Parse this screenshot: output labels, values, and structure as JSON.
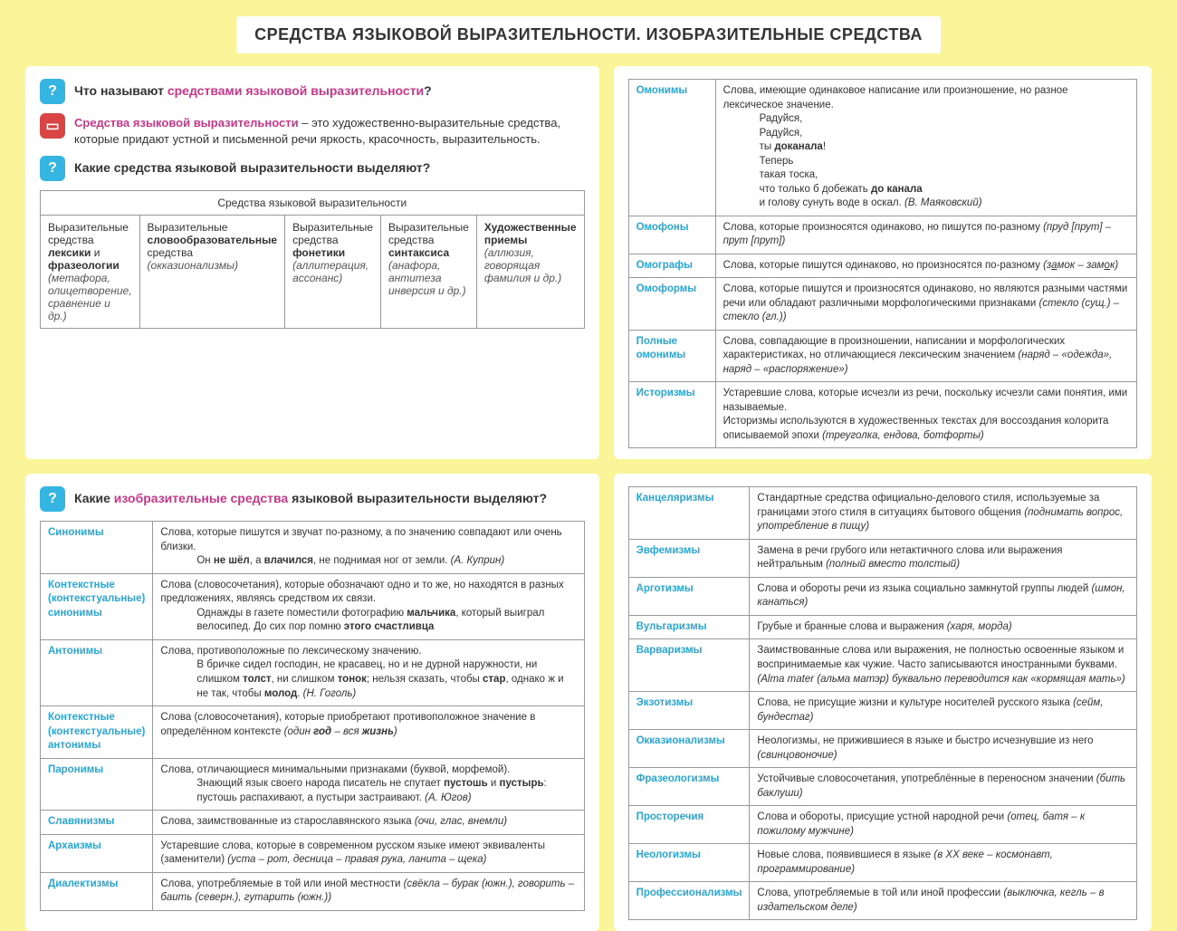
{
  "title": "СРЕДСТВА ЯЗЫКОВОЙ ВЫРАЗИТЕЛЬНОСТИ. ИЗОБРАЗИТЕЛЬНЫЕ СРЕДСТВА",
  "colors": {
    "page_bg": "#fbf59a",
    "panel_bg": "#ffffff",
    "term": "#2aa6d4",
    "highlight": "#c7378a",
    "q_icon": "#34b5e2",
    "a_icon": "#d94545",
    "border": "#999999"
  },
  "q1": {
    "pre": "Что называют ",
    "hl": "средствами языковой выразительности",
    "post": "?"
  },
  "a1": {
    "hl": "Средства языковой выразительности",
    "rest": " – это художественно-выразительные средства, которые придают устной и письменной речи яркость, красочность, выразительность."
  },
  "q2": "Какие средства языковой выразительности выделяют?",
  "t5_header": "Средства языковой выразительности",
  "t5": [
    {
      "main": "Выразительные средства <b>лексики</b> и <b>фразеологии</b>",
      "ex": "(метафора, олицетворение, сравнение и др.)"
    },
    {
      "main": "Выразительные <b>словообразовательные</b> средства",
      "ex": "(окказионализмы)"
    },
    {
      "main": "Выразительные средства <b>фонетики</b>",
      "ex": "(аллитерация, ассонанс)"
    },
    {
      "main": "Выразительные средства <b>синтаксиса</b>",
      "ex": "(анафора, антитеза инверсия и др.)"
    },
    {
      "main": "<b>Художественные приемы</b>",
      "ex": "(аллюзия, говорящая фамилия и др.)"
    }
  ],
  "tableA": [
    {
      "term": "Омонимы",
      "def": "Слова, имеющие одинаковое написание или произношение, но разное лексическое значение.<br><span class='indent'>Радуйся,<br>Радуйся,<br>ты <b>доканала</b>!<br>Теперь<br>такая тоска,<br>что только б добежать <b>до канала</b><br>и голову сунуть воде в оскал. <span class='iex'>(В. Маяковский)</span></span>"
    },
    {
      "term": "Омофоны",
      "def": "Слова, которые произносятся одинаково, но пишутся по-разному <span class='iex'>(пруд [прут] – прут [прут])</span>"
    },
    {
      "term": "Омографы",
      "def": "Слова, которые пишутся одинаково, но произносятся по-разному <span class='iex'>(з<u>а</u>мок – зам<u>о</u>к)</span>"
    },
    {
      "term": "Омоформы",
      "def": "Слова, которые пишутся и произносятся одинаково, но являются разными частями речи или обладают различными морфологическими признаками <span class='iex'>(стекло (сущ.) – стекло (гл.))</span>"
    },
    {
      "term": "Полные омонимы",
      "def": "Слова, совпадающие в произношении, написании и морфологических характеристиках, но отличающиеся лексическим значением <span class='iex'>(наряд – «одежда», наряд – «распоряжение»)</span>"
    },
    {
      "term": "Историзмы",
      "def": "Устаревшие слова, которые исчезли из речи, поскольку исчезли сами понятия, ими называемые.<br>Историзмы используются в художественных текстах для воссоздания колорита описываемой эпохи <span class='iex'>(треуголка, ендова, ботфорты)</span>"
    }
  ],
  "q3": {
    "pre": "Какие ",
    "hl": "изобразительные средства",
    "post": " языковой выразительности выделяют?"
  },
  "tableB": [
    {
      "term": "Синонимы",
      "def": "Слова, которые пишутся и звучат по-разному, а по значению совпадают или очень близки.<br><span class='indent'>Он <b>не шёл</b>, а <b>влачился</b>, не поднимая ног от земли. <span class='iex'>(А. Куприн)</span></span>"
    },
    {
      "term": "Контекстные (контекстуальные) синонимы",
      "def": "Слова (словосочетания), которые обозначают одно и то же, но находятся в разных предложениях, являясь средством их связи.<br><span class='indent'>Однажды в газете поместили фотографию <b>мальчика</b>, который выиграл велосипед. До сих пор помню <b>этого счастливца</b></span>"
    },
    {
      "term": "Антонимы",
      "def": "Слова, противоположные по лексическому значению.<br><span class='indent'>В бричке сидел господин, не красавец, но и не дурной наружности, ни слишком <b>толст</b>, ни слишком <b>тонок</b>; нельзя сказать, чтобы <b>стар</b>, однако ж и не так, чтобы <b>молод</b>. <span class='iex'>(Н. Гоголь)</span></span>"
    },
    {
      "term": "Контекстные (контекстуальные) антонимы",
      "def": "Слова (словосочетания), которые приобретают противоположное значение в определённом контексте <span class='iex'>(один <b>год</b> – вся <b>жизнь</b>)</span>"
    },
    {
      "term": "Паронимы",
      "def": "Слова, отличающиеся минимальными признаками (буквой, морфемой).<br><span class='indent'>Знающий язык своего народа писатель не спутает <b>пустошь</b> и <b>пустырь</b>: пустошь распахивают, а пустыри застраивают. <span class='iex'>(А. Югов)</span></span>"
    },
    {
      "term": "Славянизмы",
      "def": "Слова, заимствованные из старославянского языка <span class='iex'>(очи, глас, внемли)</span>"
    },
    {
      "term": "Архаизмы",
      "def": "Устаревшие слова, которые в современном русском языке имеют эквиваленты (заменители) <span class='iex'>(уста – рот, десница – правая рука, ланита – щека)</span>"
    },
    {
      "term": "Диалектизмы",
      "def": "Слова, употребляемые в той или иной местности <span class='iex'>(свёкла – бурак (южн.), говорить – баить (северн.), гутарить (южн.))</span>"
    }
  ],
  "tableC": [
    {
      "term": "Канцеляризмы",
      "def": "Стандартные средства официально-делового стиля, используемые за границами этого стиля в ситуациях бытового общения <span class='iex'>(поднимать вопрос, употребление в пищу)</span>"
    },
    {
      "term": "Эвфемизмы",
      "def": "Замена в речи грубого или нетактичного слова или выражения нейтральным <span class='iex'>(полный вместо толстый)</span>"
    },
    {
      "term": "Арготизмы",
      "def": "Слова и обороты речи из языка социально замкнутой группы людей <span class='iex'>(шмон, канаться)</span>"
    },
    {
      "term": "Вульгаризмы",
      "def": "Грубые и бранные слова и выражения <span class='iex'>(харя, морда)</span>"
    },
    {
      "term": "Варваризмы",
      "def": "Заимствованные слова или выражения, не полностью освоенные языком и воспринимаемые как чужие. Часто записываются иностранными буквами. <span class='iex'>(Alma mater (альма матэр) буквально переводится как «кормящая мать»)</span>"
    },
    {
      "term": "Экзотизмы",
      "def": "Слова, не присущие жизни и культуре носителей русского языка <span class='iex'>(сейм, бундестаг)</span>"
    },
    {
      "term": "Окказионализмы",
      "def": "Неологизмы, не прижившиеся в языке и быстро исчезнувшие из него <span class='iex'>(свинцовоночие)</span>"
    },
    {
      "term": "Фразеологизмы",
      "def": "Устойчивые словосочетания, употреблённые в переносном значении <span class='iex'>(бить баклуши)</span>"
    },
    {
      "term": "Просторечия",
      "def": "Слова и обороты, присущие устной народной речи <span class='iex'>(отец, батя – к пожилому мужчине)</span>"
    },
    {
      "term": "Неологизмы",
      "def": "Новые слова, появившиеся в языке <span class='iex'>(в XX веке – космонавт, программирование)</span>"
    },
    {
      "term": "Профессионализмы",
      "def": "Слова, употребляемые в той или иной профессии <span class='iex'>(выключка, кегль – в издательском деле)</span>"
    }
  ]
}
